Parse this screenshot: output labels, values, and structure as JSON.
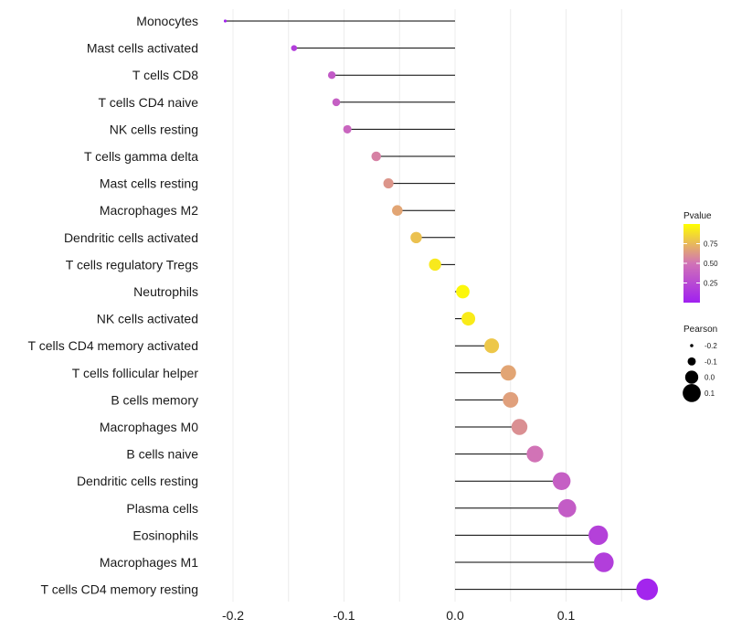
{
  "chart_data": {
    "type": "lollipop",
    "title": "",
    "xlabel": "",
    "ylabel": "",
    "xlim": [
      -0.21,
      0.175
    ],
    "x_ticks": [
      {
        "value": -0.2,
        "label": "-0.2"
      },
      {
        "value": -0.1,
        "label": "-0.1"
      },
      {
        "value": 0.0,
        "label": "0.0"
      },
      {
        "value": 0.1,
        "label": "0.1"
      }
    ],
    "grid": true,
    "categories": [
      "Monocytes",
      "Mast cells activated",
      "T cells CD8",
      "T cells CD4 naive",
      "NK cells resting",
      "T cells gamma delta",
      "Mast cells resting",
      "Macrophages M2",
      "Dendritic cells activated",
      "T cells regulatory  Tregs",
      "Neutrophils",
      "NK cells activated",
      "T cells CD4 memory activated",
      "T cells follicular helper",
      "B cells memory",
      "Macrophages M0",
      "B cells naive",
      "Dendritic cells resting",
      "Plasma cells",
      "Eosinophils",
      "Macrophages M1",
      "T cells CD4 memory resting"
    ],
    "pearson": [
      -0.207,
      -0.145,
      -0.111,
      -0.107,
      -0.097,
      -0.071,
      -0.06,
      -0.052,
      -0.035,
      -0.018,
      0.007,
      0.012,
      0.033,
      0.048,
      0.05,
      0.058,
      0.072,
      0.096,
      0.101,
      0.129,
      0.134,
      0.173
    ],
    "pvalue": [
      0.02,
      0.18,
      0.35,
      0.38,
      0.42,
      0.55,
      0.62,
      0.68,
      0.78,
      0.92,
      0.97,
      0.93,
      0.8,
      0.68,
      0.66,
      0.6,
      0.5,
      0.38,
      0.36,
      0.2,
      0.18,
      0.03
    ],
    "color_legend": {
      "title": "Pvalue",
      "range": [
        0.0,
        1.0
      ],
      "ticks": [
        {
          "value": 0.75,
          "label": "0.75"
        },
        {
          "value": 0.5,
          "label": "0.50"
        },
        {
          "value": 0.25,
          "label": "0.25"
        }
      ],
      "low_color": "#a020f0",
      "mid_color": "#d173b6",
      "high_color": "#ffff00"
    },
    "size_legend": {
      "title": "Pearson",
      "entries": [
        {
          "value": -0.2,
          "label": "-0.2"
        },
        {
          "value": -0.1,
          "label": "-0.1"
        },
        {
          "value": 0.0,
          "label": "0.0"
        },
        {
          "value": 0.1,
          "label": "0.1"
        }
      ]
    }
  }
}
